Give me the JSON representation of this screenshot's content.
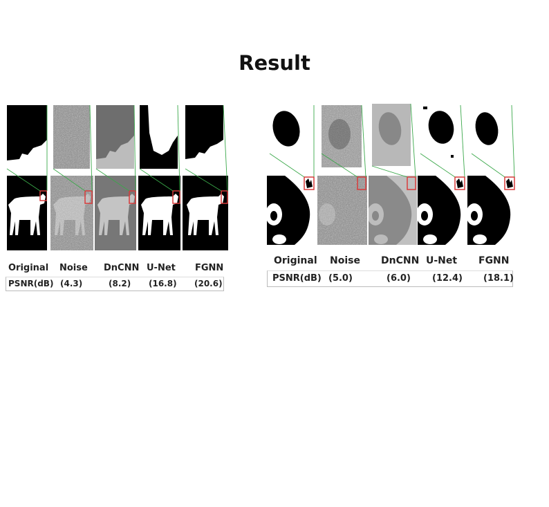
{
  "title": "Result",
  "icons": {
    "dog_image": "dog-silhouette-icon",
    "panda_image": "panda-face-icon",
    "zoom_box": "red-square-icon"
  },
  "colors": {
    "zoom_box": "#d83a3a",
    "zoom_lines": "#3aa84a",
    "background": "#ffffff"
  },
  "dog": {
    "methods": [
      "Original",
      "Noise",
      "DnCNN",
      "U-Net",
      "FGNN"
    ],
    "psnr_label": "PSNR(dB)",
    "psnr_values": [
      "(4.3)",
      "(8.2)",
      "(16.8)",
      "(20.6)"
    ]
  },
  "panda": {
    "methods": [
      "Original",
      "Noise",
      "DnCNN",
      "U-Net",
      "FGNN"
    ],
    "psnr_label": "PSNR(dB)",
    "psnr_values": [
      "(5.0)",
      "(6.0)",
      "(12.4)",
      "(18.1)"
    ]
  }
}
